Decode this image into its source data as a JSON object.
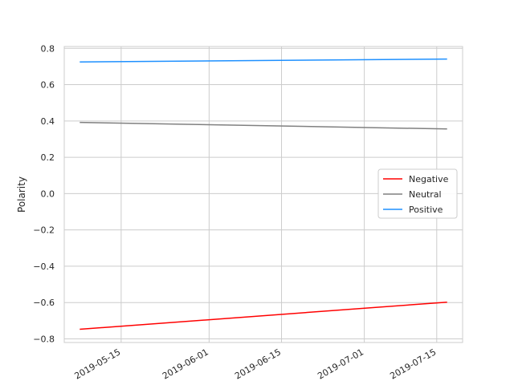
{
  "chart_data": {
    "type": "line",
    "title": "",
    "xlabel": "",
    "ylabel": "Polarity",
    "x_type": "date",
    "xlim": [
      "2019-05-04",
      "2019-07-20"
    ],
    "ylim": [
      -0.82,
      0.81
    ],
    "xticks": [
      "2019-05-15",
      "2019-06-01",
      "2019-06-15",
      "2019-07-01",
      "2019-07-15"
    ],
    "yticks": [
      0.8,
      0.6,
      0.4,
      0.2,
      0.0,
      -0.2,
      -0.4,
      -0.6,
      -0.8
    ],
    "ytick_labels": [
      "0.8",
      "0.6",
      "0.4",
      "0.2",
      "0.0",
      "−0.2",
      "−0.4",
      "−0.6",
      "−0.8"
    ],
    "grid": true,
    "legend_position": "center-right",
    "series": [
      {
        "name": "Negative",
        "color": "#ff0000",
        "x": [
          "2019-05-07",
          "2019-07-17"
        ],
        "y": [
          -0.747,
          -0.598
        ]
      },
      {
        "name": "Neutral",
        "color": "#808080",
        "x": [
          "2019-05-07",
          "2019-07-17"
        ],
        "y": [
          0.392,
          0.356
        ]
      },
      {
        "name": "Positive",
        "color": "#1e90ff",
        "x": [
          "2019-05-07",
          "2019-07-17"
        ],
        "y": [
          0.725,
          0.741
        ]
      }
    ]
  }
}
